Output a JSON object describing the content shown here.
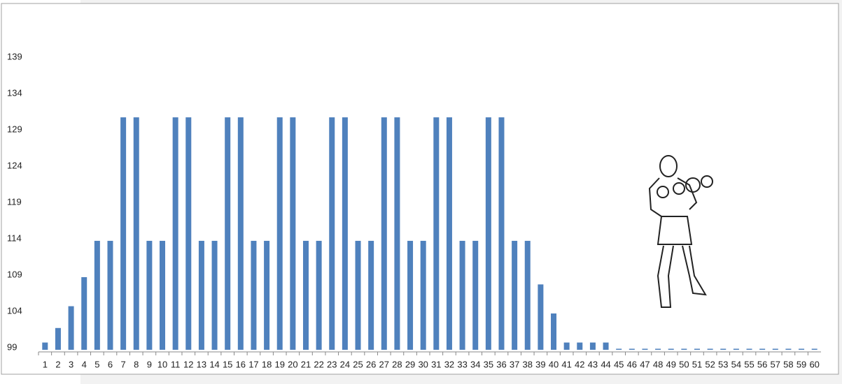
{
  "chart_data": {
    "type": "bar",
    "categories": [
      "1",
      "2",
      "3",
      "4",
      "5",
      "6",
      "7",
      "8",
      "9",
      "10",
      "11",
      "12",
      "13",
      "14",
      "15",
      "16",
      "17",
      "18",
      "19",
      "20",
      "21",
      "22",
      "23",
      "24",
      "25",
      "26",
      "27",
      "28",
      "29",
      "30",
      "31",
      "32",
      "33",
      "34",
      "35",
      "36",
      "37",
      "38",
      "39",
      "40",
      "41",
      "42",
      "43",
      "44",
      "45",
      "46",
      "47",
      "48",
      "49",
      "50",
      "51",
      "52",
      "53",
      "54",
      "55",
      "56",
      "57",
      "58",
      "59",
      "60"
    ],
    "values": [
      100,
      102,
      105,
      109,
      114,
      114,
      131,
      131,
      114,
      114,
      131,
      131,
      114,
      114,
      131,
      131,
      114,
      114,
      131,
      131,
      114,
      114,
      131,
      131,
      114,
      114,
      131,
      131,
      114,
      114,
      131,
      131,
      114,
      114,
      131,
      131,
      114,
      114,
      108,
      104,
      100,
      100,
      100,
      100,
      99,
      99,
      99,
      99,
      99,
      99,
      99,
      99,
      99,
      99,
      99,
      99,
      99,
      99,
      99,
      99
    ],
    "color": "#4f81bd",
    "ylim": [
      99,
      146
    ],
    "yticks": [
      99,
      104,
      109,
      114,
      119,
      124,
      129,
      134,
      139
    ],
    "grid": false
  }
}
